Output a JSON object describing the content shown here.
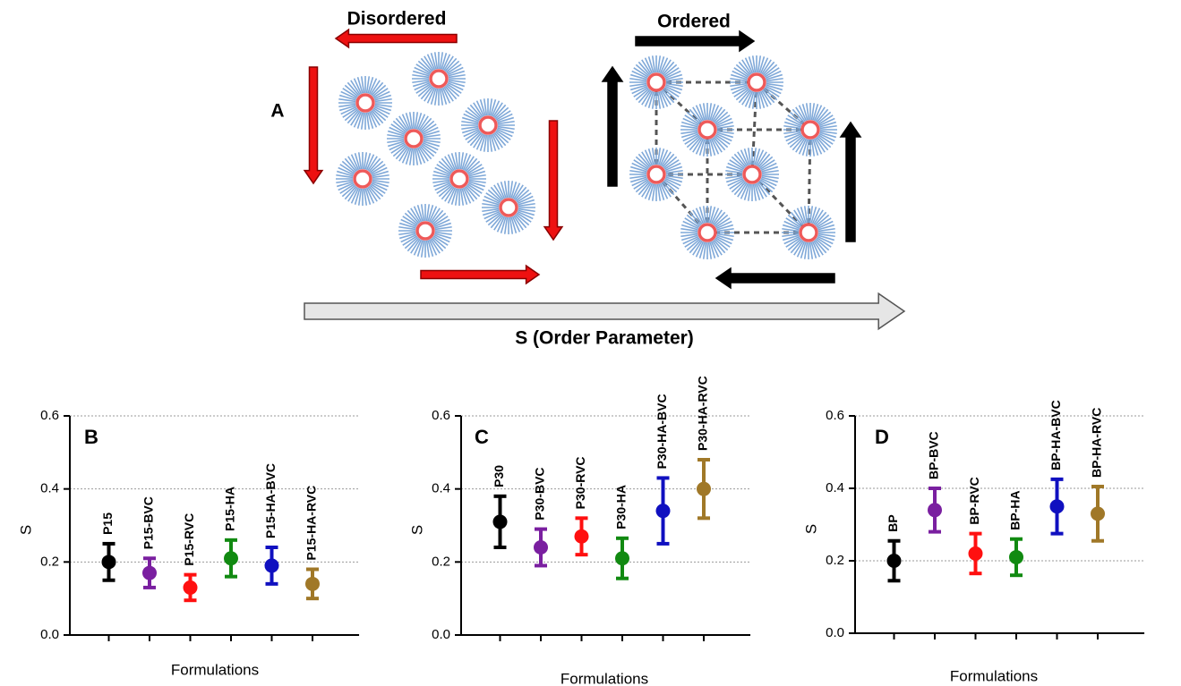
{
  "diagram": {
    "panel_label": "A",
    "left_label": "Disordered",
    "right_label": "Ordered",
    "axis_label": "S (Order Parameter)"
  },
  "chart_data": [
    {
      "type": "errorbar",
      "panel_label": "B",
      "ylabel": "S",
      "xlabel": "Formulations",
      "categories": [
        "P15",
        "P15-BVC",
        "P15-RVC",
        "P15-HA",
        "P15-HA-BVC",
        "P15-HA-RVC"
      ],
      "values": [
        0.2,
        0.17,
        0.13,
        0.21,
        0.19,
        0.14
      ],
      "errors": [
        0.05,
        0.04,
        0.035,
        0.05,
        0.05,
        0.04
      ],
      "colors": [
        "#000000",
        "#7a1fa0",
        "#ff1010",
        "#118a11",
        "#1010c0",
        "#a07828"
      ],
      "ylim": [
        0,
        0.6
      ],
      "yticks": [
        {
          "value": 0,
          "label": "0.0"
        },
        0.2,
        0.4,
        0.6
      ],
      "grid": true
    },
    {
      "type": "errorbar",
      "panel_label": "C",
      "ylabel": "S",
      "xlabel": "Formulations",
      "categories": [
        "P30",
        "P30-BVC",
        "P30-RVC",
        "P30-HA",
        "P30-HA-BVC",
        "P30-HA-RVC"
      ],
      "values": [
        0.31,
        0.24,
        0.27,
        0.21,
        0.34,
        0.4
      ],
      "errors": [
        0.07,
        0.05,
        0.05,
        0.055,
        0.09,
        0.08
      ],
      "colors": [
        "#000000",
        "#7a1fa0",
        "#ff1010",
        "#118a11",
        "#1010c0",
        "#a07828"
      ],
      "ylim": [
        0,
        0.6
      ],
      "yticks": [
        {
          "value": 0,
          "label": "0.0"
        },
        0.2,
        0.4,
        0.6
      ],
      "grid": true
    },
    {
      "type": "errorbar",
      "panel_label": "D",
      "ylabel": "S",
      "xlabel": "Formulations",
      "categories": [
        "BP",
        "BP-BVC",
        "BP-RVC",
        "BP-HA",
        "BP-HA-BVC",
        "BP-HA-RVC"
      ],
      "values": [
        0.2,
        0.34,
        0.22,
        0.21,
        0.35,
        0.33
      ],
      "errors": [
        0.055,
        0.06,
        0.055,
        0.05,
        0.075,
        0.075
      ],
      "colors": [
        "#000000",
        "#7a1fa0",
        "#ff1010",
        "#118a11",
        "#1010c0",
        "#a07828"
      ],
      "ylim": [
        0,
        0.6
      ],
      "yticks": [
        {
          "value": 0,
          "label": "0.0"
        },
        0.2,
        0.4,
        0.6
      ],
      "grid": true
    }
  ]
}
